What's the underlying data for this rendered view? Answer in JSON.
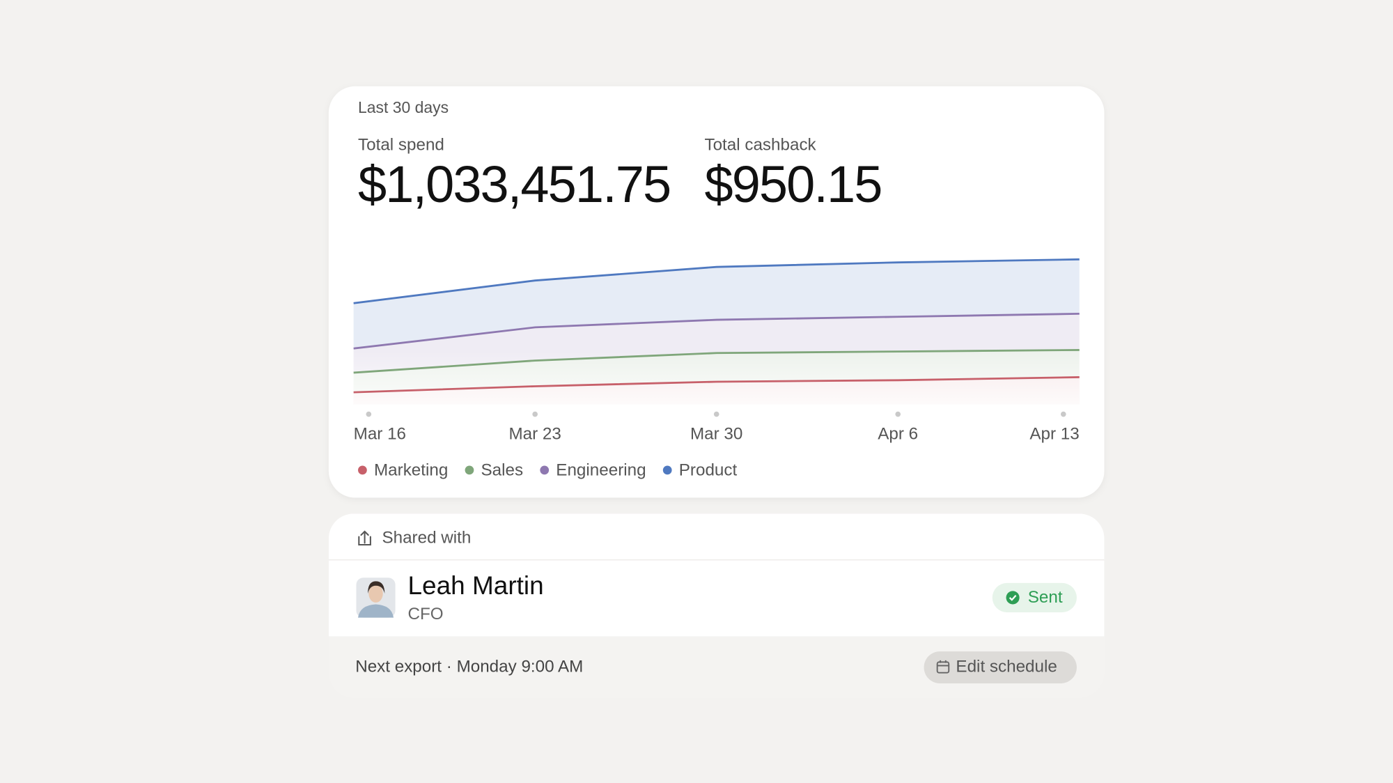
{
  "period": "Last 30 days",
  "metrics": [
    {
      "label": "Total spend",
      "value": "$1,033,451.75"
    },
    {
      "label": "Total cashback",
      "value": "$950.15"
    }
  ],
  "chart_data": {
    "type": "area",
    "stacked": true,
    "categories": [
      "Mar 16",
      "Mar 23",
      "Mar 30",
      "Apr 6",
      "Apr 13"
    ],
    "series": [
      {
        "name": "Marketing",
        "color": "#c7606a",
        "values": [
          8,
          12,
          15,
          16,
          18
        ]
      },
      {
        "name": "Sales",
        "color": "#7fa67a",
        "values": [
          13,
          17,
          19,
          19,
          18
        ]
      },
      {
        "name": "Engineering",
        "color": "#8e78b0",
        "values": [
          16,
          22,
          22,
          23,
          24
        ]
      },
      {
        "name": "Product",
        "color": "#4f79c0",
        "values": [
          30,
          31,
          35,
          36,
          36
        ]
      }
    ],
    "ylim": [
      0,
      100
    ]
  },
  "shared": {
    "title": "Shared with",
    "person": {
      "name": "Leah Martin",
      "role": "CFO"
    },
    "status": "Sent"
  },
  "footer": {
    "next_export": "Next export · Monday 9:00 AM",
    "button": "Edit schedule"
  }
}
